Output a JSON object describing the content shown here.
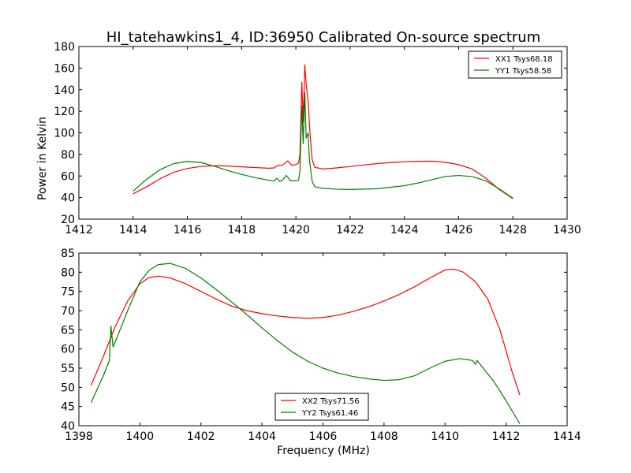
{
  "chart_data": [
    {
      "type": "line",
      "title": "HI_tatehawkins1_4, ID:36950 Calibrated On-source spectrum",
      "xlabel": "",
      "ylabel": "Power in Kelvin",
      "xlim": [
        1412,
        1430
      ],
      "ylim": [
        20,
        180
      ],
      "xticks": [
        "1412",
        "1414",
        "1416",
        "1418",
        "1420",
        "1422",
        "1424",
        "1426",
        "1428",
        "1430"
      ],
      "yticks": [
        "20",
        "40",
        "60",
        "80",
        "100",
        "120",
        "140",
        "160",
        "180"
      ],
      "legend_position": "top-right",
      "series": [
        {
          "name": "XX1 Tsys68.18",
          "color": "#ff0000",
          "points": [
            [
              1414.0,
              43.5
            ],
            [
              1414.5,
              50
            ],
            [
              1415.0,
              57.5
            ],
            [
              1415.5,
              63.5
            ],
            [
              1416.0,
              67
            ],
            [
              1416.5,
              68.8
            ],
            [
              1417.0,
              69.5
            ],
            [
              1417.5,
              69.2
            ],
            [
              1418.0,
              68.5
            ],
            [
              1418.5,
              67.8
            ],
            [
              1419.0,
              67.2
            ],
            [
              1419.2,
              67.5
            ],
            [
              1419.3,
              69.5
            ],
            [
              1419.5,
              70
            ],
            [
              1419.7,
              74
            ],
            [
              1419.85,
              70
            ],
            [
              1420.0,
              70.5
            ],
            [
              1420.1,
              72
            ],
            [
              1420.15,
              80
            ],
            [
              1420.22,
              147
            ],
            [
              1420.27,
              110
            ],
            [
              1420.33,
              163
            ],
            [
              1420.38,
              145
            ],
            [
              1420.45,
              130
            ],
            [
              1420.52,
              100
            ],
            [
              1420.6,
              75
            ],
            [
              1420.7,
              68
            ],
            [
              1421.0,
              66.5
            ],
            [
              1421.5,
              67.5
            ],
            [
              1422.0,
              68.8
            ],
            [
              1422.5,
              70.2
            ],
            [
              1423.0,
              71.5
            ],
            [
              1423.5,
              72.5
            ],
            [
              1424.0,
              73.2
            ],
            [
              1424.5,
              73.6
            ],
            [
              1425.0,
              73.7
            ],
            [
              1425.5,
              72.8
            ],
            [
              1426.0,
              70.5
            ],
            [
              1426.5,
              66.5
            ],
            [
              1427.0,
              58
            ],
            [
              1427.5,
              47.5
            ],
            [
              1428.0,
              39
            ]
          ]
        },
        {
          "name": "YY1 Tsys58.58",
          "color": "#008000",
          "points": [
            [
              1414.0,
              46
            ],
            [
              1414.5,
              57
            ],
            [
              1415.0,
              66
            ],
            [
              1415.5,
              71.5
            ],
            [
              1416.0,
              73.5
            ],
            [
              1416.5,
              72.5
            ],
            [
              1417.0,
              69
            ],
            [
              1417.5,
              65
            ],
            [
              1418.0,
              61.5
            ],
            [
              1418.5,
              58.5
            ],
            [
              1419.0,
              56
            ],
            [
              1419.2,
              55.5
            ],
            [
              1419.3,
              58
            ],
            [
              1419.4,
              55
            ],
            [
              1419.5,
              56
            ],
            [
              1419.65,
              60.5
            ],
            [
              1419.8,
              55.5
            ],
            [
              1420.0,
              55.5
            ],
            [
              1420.1,
              56
            ],
            [
              1420.15,
              65
            ],
            [
              1420.22,
              125
            ],
            [
              1420.27,
              90
            ],
            [
              1420.33,
              137
            ],
            [
              1420.38,
              95
            ],
            [
              1420.45,
              100
            ],
            [
              1420.5,
              75
            ],
            [
              1420.6,
              55
            ],
            [
              1420.7,
              50
            ],
            [
              1421.0,
              48.5
            ],
            [
              1421.5,
              47.8
            ],
            [
              1422.0,
              47.5
            ],
            [
              1423.0,
              48.2
            ],
            [
              1424.0,
              51
            ],
            [
              1424.5,
              53.5
            ],
            [
              1425.0,
              56.5
            ],
            [
              1425.5,
              59.5
            ],
            [
              1426.0,
              60.5
            ],
            [
              1426.5,
              59.5
            ],
            [
              1427.0,
              55.5
            ],
            [
              1427.5,
              48
            ],
            [
              1428.0,
              39.5
            ]
          ]
        }
      ]
    },
    {
      "type": "line",
      "title": "",
      "xlabel": "Frequency (MHz)",
      "ylabel": "",
      "xlim": [
        1398,
        1414
      ],
      "ylim": [
        40,
        85
      ],
      "xticks": [
        "1398",
        "1400",
        "1402",
        "1404",
        "1406",
        "1408",
        "1410",
        "1412",
        "1414"
      ],
      "yticks": [
        "40",
        "45",
        "50",
        "55",
        "60",
        "65",
        "70",
        "75",
        "80",
        "85"
      ],
      "legend_position": "bottom-center",
      "series": [
        {
          "name": "XX2 Tsys71.56",
          "color": "#ff0000",
          "points": [
            [
              1398.4,
              50.5
            ],
            [
              1398.8,
              58
            ],
            [
              1399.2,
              66
            ],
            [
              1399.6,
              72.5
            ],
            [
              1400.0,
              77
            ],
            [
              1400.3,
              78.6
            ],
            [
              1400.6,
              79
            ],
            [
              1401.0,
              78.5
            ],
            [
              1401.5,
              77
            ],
            [
              1402.0,
              75
            ],
            [
              1402.5,
              73
            ],
            [
              1403.0,
              71.2
            ],
            [
              1403.5,
              70
            ],
            [
              1404.0,
              69.2
            ],
            [
              1404.5,
              68.6
            ],
            [
              1405.0,
              68.2
            ],
            [
              1405.5,
              68
            ],
            [
              1406.0,
              68.2
            ],
            [
              1406.5,
              68.8
            ],
            [
              1407.0,
              69.8
            ],
            [
              1407.5,
              71
            ],
            [
              1408.0,
              72.5
            ],
            [
              1408.5,
              74.2
            ],
            [
              1409.0,
              76.2
            ],
            [
              1409.5,
              78.5
            ],
            [
              1410.0,
              80.6
            ],
            [
              1410.3,
              80.8
            ],
            [
              1410.6,
              80
            ],
            [
              1411.0,
              77.5
            ],
            [
              1411.4,
              73
            ],
            [
              1411.8,
              65
            ],
            [
              1412.2,
              54
            ],
            [
              1412.45,
              48
            ]
          ]
        },
        {
          "name": "YY2 Tsys61.46",
          "color": "#008000",
          "points": [
            [
              1398.4,
              46
            ],
            [
              1398.8,
              53
            ],
            [
              1399.0,
              57
            ],
            [
              1399.05,
              66
            ],
            [
              1399.12,
              60.5
            ],
            [
              1399.3,
              64
            ],
            [
              1399.6,
              70
            ],
            [
              1400.0,
              77.5
            ],
            [
              1400.3,
              80.5
            ],
            [
              1400.6,
              82
            ],
            [
              1401.0,
              82.3
            ],
            [
              1401.5,
              81
            ],
            [
              1402.0,
              78.5
            ],
            [
              1402.5,
              75.5
            ],
            [
              1403.0,
              72.3
            ],
            [
              1403.5,
              69
            ],
            [
              1404.0,
              65.5
            ],
            [
              1404.5,
              62.2
            ],
            [
              1405.0,
              59.2
            ],
            [
              1405.5,
              56.8
            ],
            [
              1406.0,
              55
            ],
            [
              1406.5,
              53.7
            ],
            [
              1407.0,
              52.8
            ],
            [
              1407.5,
              52.2
            ],
            [
              1408.0,
              51.8
            ],
            [
              1408.5,
              52
            ],
            [
              1409.0,
              53
            ],
            [
              1409.5,
              55
            ],
            [
              1410.0,
              56.8
            ],
            [
              1410.5,
              57.5
            ],
            [
              1410.9,
              57
            ],
            [
              1411.0,
              56
            ],
            [
              1411.05,
              57
            ],
            [
              1411.2,
              55.5
            ],
            [
              1411.6,
              51.5
            ],
            [
              1412.0,
              46.5
            ],
            [
              1412.45,
              40.5
            ]
          ]
        }
      ]
    }
  ]
}
